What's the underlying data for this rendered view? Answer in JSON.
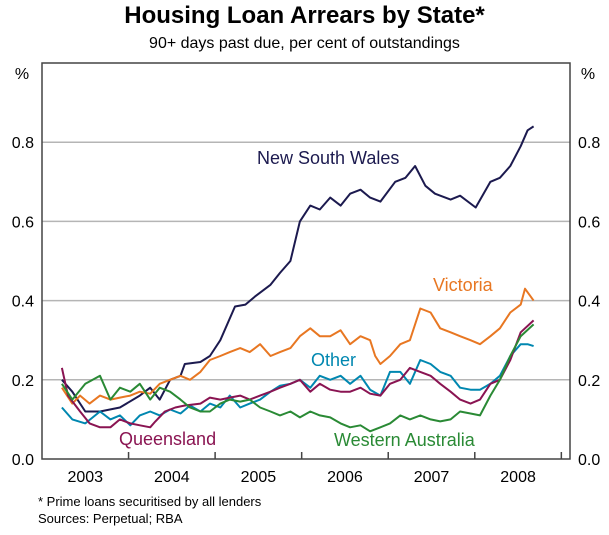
{
  "chart_data": {
    "type": "line",
    "title": "Housing Loan Arrears by State*",
    "subtitle": "90+ days past due, per cent of outstandings",
    "ylabel_left": "%",
    "ylabel_right": "%",
    "xlim": [
      2003,
      2009.1
    ],
    "ylim": [
      0,
      1.0
    ],
    "yticks": [
      0.0,
      0.2,
      0.4,
      0.6,
      0.8
    ],
    "ytick_labels": [
      "0.0",
      "0.2",
      "0.4",
      "0.6",
      "0.8"
    ],
    "xtick_labels": [
      "2003",
      "2004",
      "2005",
      "2006",
      "2007",
      "2008"
    ],
    "grid": true,
    "series": [
      {
        "name": "New South Wales",
        "color": "#1c1a4f",
        "points": [
          [
            2003.23,
            0.2
          ],
          [
            2003.35,
            0.17
          ],
          [
            2003.5,
            0.12
          ],
          [
            2003.67,
            0.12
          ],
          [
            2003.9,
            0.13
          ],
          [
            2004.13,
            0.16
          ],
          [
            2004.25,
            0.18
          ],
          [
            2004.36,
            0.15
          ],
          [
            2004.48,
            0.2
          ],
          [
            2004.6,
            0.21
          ],
          [
            2004.65,
            0.24
          ],
          [
            2004.83,
            0.245
          ],
          [
            2004.94,
            0.26
          ],
          [
            2005.06,
            0.3
          ],
          [
            2005.23,
            0.385
          ],
          [
            2005.35,
            0.39
          ],
          [
            2005.46,
            0.41
          ],
          [
            2005.64,
            0.44
          ],
          [
            2005.75,
            0.47
          ],
          [
            2005.87,
            0.5
          ],
          [
            2005.98,
            0.6
          ],
          [
            2006.1,
            0.64
          ],
          [
            2006.21,
            0.63
          ],
          [
            2006.33,
            0.66
          ],
          [
            2006.45,
            0.64
          ],
          [
            2006.56,
            0.67
          ],
          [
            2006.68,
            0.68
          ],
          [
            2006.79,
            0.66
          ],
          [
            2006.91,
            0.65
          ],
          [
            2007.08,
            0.7
          ],
          [
            2007.2,
            0.71
          ],
          [
            2007.31,
            0.74
          ],
          [
            2007.43,
            0.69
          ],
          [
            2007.54,
            0.67
          ],
          [
            2007.72,
            0.655
          ],
          [
            2007.83,
            0.665
          ],
          [
            2008.01,
            0.635
          ],
          [
            2008.18,
            0.7
          ],
          [
            2008.29,
            0.71
          ],
          [
            2008.41,
            0.74
          ],
          [
            2008.53,
            0.79
          ],
          [
            2008.61,
            0.83
          ],
          [
            2008.68,
            0.84
          ]
        ]
      },
      {
        "name": "Victoria",
        "color": "#e87722",
        "points": [
          [
            2003.23,
            0.18
          ],
          [
            2003.35,
            0.14
          ],
          [
            2003.44,
            0.16
          ],
          [
            2003.55,
            0.14
          ],
          [
            2003.67,
            0.16
          ],
          [
            2003.79,
            0.15
          ],
          [
            2003.9,
            0.155
          ],
          [
            2004.02,
            0.16
          ],
          [
            2004.13,
            0.17
          ],
          [
            2004.25,
            0.165
          ],
          [
            2004.36,
            0.19
          ],
          [
            2004.48,
            0.2
          ],
          [
            2004.6,
            0.21
          ],
          [
            2004.71,
            0.2
          ],
          [
            2004.83,
            0.22
          ],
          [
            2004.94,
            0.25
          ],
          [
            2005.06,
            0.26
          ],
          [
            2005.17,
            0.27
          ],
          [
            2005.29,
            0.28
          ],
          [
            2005.4,
            0.27
          ],
          [
            2005.52,
            0.29
          ],
          [
            2005.64,
            0.26
          ],
          [
            2005.75,
            0.27
          ],
          [
            2005.87,
            0.28
          ],
          [
            2005.98,
            0.31
          ],
          [
            2006.1,
            0.33
          ],
          [
            2006.21,
            0.31
          ],
          [
            2006.33,
            0.31
          ],
          [
            2006.45,
            0.325
          ],
          [
            2006.56,
            0.29
          ],
          [
            2006.68,
            0.31
          ],
          [
            2006.79,
            0.3
          ],
          [
            2006.85,
            0.26
          ],
          [
            2006.91,
            0.24
          ],
          [
            2007.02,
            0.26
          ],
          [
            2007.14,
            0.29
          ],
          [
            2007.25,
            0.3
          ],
          [
            2007.37,
            0.38
          ],
          [
            2007.49,
            0.37
          ],
          [
            2007.6,
            0.33
          ],
          [
            2007.72,
            0.32
          ],
          [
            2007.83,
            0.31
          ],
          [
            2007.95,
            0.3
          ],
          [
            2008.06,
            0.29
          ],
          [
            2008.18,
            0.31
          ],
          [
            2008.29,
            0.33
          ],
          [
            2008.41,
            0.37
          ],
          [
            2008.53,
            0.39
          ],
          [
            2008.58,
            0.43
          ],
          [
            2008.68,
            0.4
          ]
        ]
      },
      {
        "name": "Other",
        "color": "#0087b0",
        "points": [
          [
            2003.23,
            0.13
          ],
          [
            2003.35,
            0.1
          ],
          [
            2003.5,
            0.09
          ],
          [
            2003.67,
            0.12
          ],
          [
            2003.79,
            0.1
          ],
          [
            2003.9,
            0.11
          ],
          [
            2004.02,
            0.085
          ],
          [
            2004.13,
            0.11
          ],
          [
            2004.25,
            0.12
          ],
          [
            2004.36,
            0.11
          ],
          [
            2004.48,
            0.125
          ],
          [
            2004.6,
            0.115
          ],
          [
            2004.71,
            0.135
          ],
          [
            2004.83,
            0.12
          ],
          [
            2004.94,
            0.14
          ],
          [
            2005.06,
            0.13
          ],
          [
            2005.17,
            0.16
          ],
          [
            2005.29,
            0.13
          ],
          [
            2005.4,
            0.14
          ],
          [
            2005.52,
            0.15
          ],
          [
            2005.64,
            0.17
          ],
          [
            2005.75,
            0.185
          ],
          [
            2005.87,
            0.19
          ],
          [
            2005.98,
            0.2
          ],
          [
            2006.1,
            0.18
          ],
          [
            2006.21,
            0.21
          ],
          [
            2006.33,
            0.2
          ],
          [
            2006.45,
            0.21
          ],
          [
            2006.56,
            0.19
          ],
          [
            2006.68,
            0.21
          ],
          [
            2006.79,
            0.175
          ],
          [
            2006.91,
            0.16
          ],
          [
            2007.02,
            0.22
          ],
          [
            2007.14,
            0.22
          ],
          [
            2007.25,
            0.19
          ],
          [
            2007.37,
            0.25
          ],
          [
            2007.49,
            0.24
          ],
          [
            2007.6,
            0.22
          ],
          [
            2007.72,
            0.21
          ],
          [
            2007.83,
            0.18
          ],
          [
            2007.95,
            0.175
          ],
          [
            2008.06,
            0.175
          ],
          [
            2008.18,
            0.19
          ],
          [
            2008.29,
            0.21
          ],
          [
            2008.41,
            0.26
          ],
          [
            2008.53,
            0.29
          ],
          [
            2008.61,
            0.29
          ],
          [
            2008.68,
            0.285
          ]
        ]
      },
      {
        "name": "Queensland",
        "color": "#8a1452",
        "points": [
          [
            2003.23,
            0.23
          ],
          [
            2003.3,
            0.16
          ],
          [
            2003.44,
            0.12
          ],
          [
            2003.55,
            0.09
          ],
          [
            2003.67,
            0.08
          ],
          [
            2003.79,
            0.08
          ],
          [
            2003.9,
            0.1
          ],
          [
            2004.02,
            0.09
          ],
          [
            2004.13,
            0.085
          ],
          [
            2004.25,
            0.08
          ],
          [
            2004.31,
            0.095
          ],
          [
            2004.42,
            0.12
          ],
          [
            2004.54,
            0.13
          ],
          [
            2004.65,
            0.135
          ],
          [
            2004.83,
            0.14
          ],
          [
            2004.94,
            0.155
          ],
          [
            2005.06,
            0.15
          ],
          [
            2005.17,
            0.155
          ],
          [
            2005.29,
            0.16
          ],
          [
            2005.4,
            0.15
          ],
          [
            2005.52,
            0.16
          ],
          [
            2005.64,
            0.17
          ],
          [
            2005.75,
            0.18
          ],
          [
            2005.87,
            0.19
          ],
          [
            2005.98,
            0.2
          ],
          [
            2006.1,
            0.17
          ],
          [
            2006.21,
            0.19
          ],
          [
            2006.33,
            0.175
          ],
          [
            2006.45,
            0.17
          ],
          [
            2006.56,
            0.17
          ],
          [
            2006.68,
            0.18
          ],
          [
            2006.79,
            0.165
          ],
          [
            2006.91,
            0.16
          ],
          [
            2007.02,
            0.19
          ],
          [
            2007.14,
            0.2
          ],
          [
            2007.25,
            0.23
          ],
          [
            2007.37,
            0.22
          ],
          [
            2007.49,
            0.21
          ],
          [
            2007.6,
            0.19
          ],
          [
            2007.72,
            0.17
          ],
          [
            2007.83,
            0.15
          ],
          [
            2007.95,
            0.14
          ],
          [
            2008.06,
            0.15
          ],
          [
            2008.18,
            0.19
          ],
          [
            2008.29,
            0.2
          ],
          [
            2008.41,
            0.25
          ],
          [
            2008.53,
            0.32
          ],
          [
            2008.68,
            0.35
          ]
        ]
      },
      {
        "name": "Western Australia",
        "color": "#2a8a35",
        "points": [
          [
            2003.23,
            0.19
          ],
          [
            2003.35,
            0.15
          ],
          [
            2003.5,
            0.19
          ],
          [
            2003.67,
            0.21
          ],
          [
            2003.79,
            0.15
          ],
          [
            2003.9,
            0.18
          ],
          [
            2004.02,
            0.17
          ],
          [
            2004.13,
            0.19
          ],
          [
            2004.25,
            0.15
          ],
          [
            2004.36,
            0.18
          ],
          [
            2004.48,
            0.17
          ],
          [
            2004.6,
            0.15
          ],
          [
            2004.71,
            0.13
          ],
          [
            2004.83,
            0.12
          ],
          [
            2004.94,
            0.12
          ],
          [
            2005.06,
            0.14
          ],
          [
            2005.17,
            0.15
          ],
          [
            2005.29,
            0.145
          ],
          [
            2005.4,
            0.15
          ],
          [
            2005.52,
            0.13
          ],
          [
            2005.64,
            0.12
          ],
          [
            2005.75,
            0.11
          ],
          [
            2005.87,
            0.12
          ],
          [
            2005.98,
            0.105
          ],
          [
            2006.1,
            0.12
          ],
          [
            2006.21,
            0.11
          ],
          [
            2006.33,
            0.105
          ],
          [
            2006.45,
            0.09
          ],
          [
            2006.56,
            0.08
          ],
          [
            2006.68,
            0.085
          ],
          [
            2006.79,
            0.07
          ],
          [
            2006.91,
            0.08
          ],
          [
            2007.02,
            0.09
          ],
          [
            2007.14,
            0.11
          ],
          [
            2007.25,
            0.1
          ],
          [
            2007.37,
            0.11
          ],
          [
            2007.49,
            0.1
          ],
          [
            2007.6,
            0.095
          ],
          [
            2007.72,
            0.1
          ],
          [
            2007.83,
            0.12
          ],
          [
            2007.95,
            0.115
          ],
          [
            2008.06,
            0.11
          ],
          [
            2008.18,
            0.16
          ],
          [
            2008.29,
            0.2
          ],
          [
            2008.41,
            0.26
          ],
          [
            2008.53,
            0.31
          ],
          [
            2008.68,
            0.34
          ]
        ]
      }
    ],
    "annotations": [
      {
        "text": "New South Wales",
        "series": "New South Wales"
      },
      {
        "text": "Victoria",
        "series": "Victoria"
      },
      {
        "text": "Other",
        "series": "Other"
      },
      {
        "text": "Queensland",
        "series": "Queensland"
      },
      {
        "text": "Western Australia",
        "series": "Western Australia"
      }
    ]
  },
  "notes": {
    "footnote": "*   Prime loans securitised by all lenders",
    "sources": "Sources: Perpetual; RBA"
  }
}
